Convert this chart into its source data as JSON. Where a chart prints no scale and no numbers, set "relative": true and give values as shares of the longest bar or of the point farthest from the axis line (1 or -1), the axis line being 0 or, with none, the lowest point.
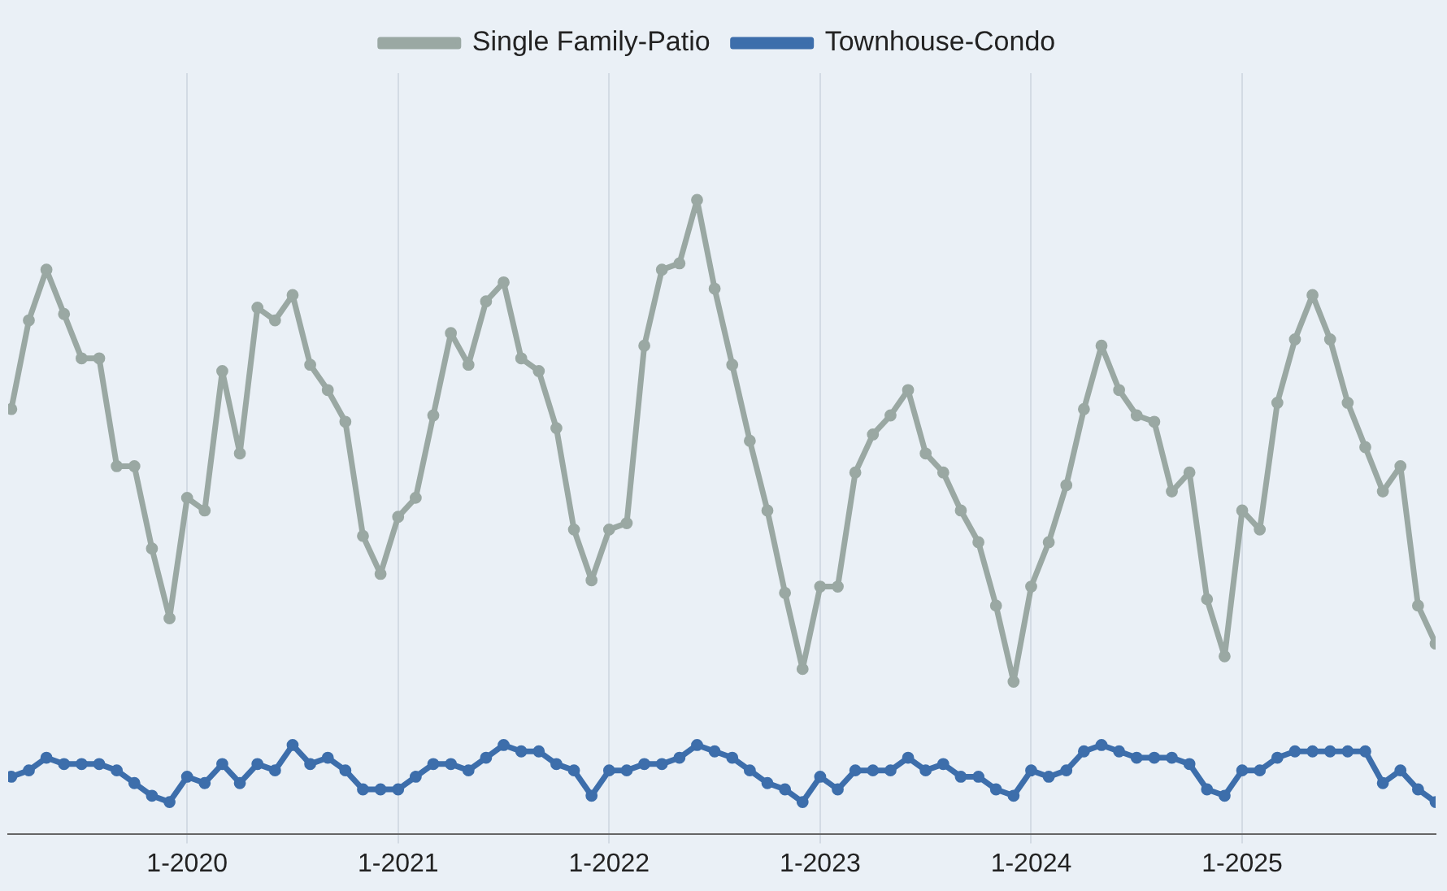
{
  "chart_data": {
    "type": "line",
    "relative": true,
    "legend": "top",
    "grid": "x",
    "marker": "circle",
    "line_style": "solid",
    "x": [
      "2019-03",
      "2019-04",
      "2019-05",
      "2019-06",
      "2019-07",
      "2019-08",
      "2019-09",
      "2019-10",
      "2019-11",
      "2019-12",
      "2020-01",
      "2020-02",
      "2020-03",
      "2020-04",
      "2020-05",
      "2020-06",
      "2020-07",
      "2020-08",
      "2020-09",
      "2020-10",
      "2020-11",
      "2020-12",
      "2021-01",
      "2021-02",
      "2021-03",
      "2021-04",
      "2021-05",
      "2021-06",
      "2021-07",
      "2021-08",
      "2021-09",
      "2021-10",
      "2021-11",
      "2021-12",
      "2022-01",
      "2022-02",
      "2022-03",
      "2022-04",
      "2022-05",
      "2022-06",
      "2022-07",
      "2022-08",
      "2022-09",
      "2022-10",
      "2022-11",
      "2022-12",
      "2023-01",
      "2023-02",
      "2023-03",
      "2023-04",
      "2023-05",
      "2023-06",
      "2023-07",
      "2023-08",
      "2023-09",
      "2023-10",
      "2023-11",
      "2023-12",
      "2024-01",
      "2024-02",
      "2024-03",
      "2024-04",
      "2024-05",
      "2024-06",
      "2024-07",
      "2024-08",
      "2024-09",
      "2024-10",
      "2024-11",
      "2024-12",
      "2025-01",
      "2025-02",
      "2025-03",
      "2025-04",
      "2025-05",
      "2025-06",
      "2025-07",
      "2025-08",
      "2025-09",
      "2025-10",
      "2025-11",
      "2025-12"
    ],
    "xlim": [
      "2019-02-24",
      "2025-12-01"
    ],
    "xticks": [
      {
        "value": "2020-01",
        "label": "1-2020"
      },
      {
        "value": "2021-01",
        "label": "1-2021"
      },
      {
        "value": "2022-01",
        "label": "1-2022"
      },
      {
        "value": "2023-01",
        "label": "1-2023"
      },
      {
        "value": "2024-01",
        "label": "1-2024"
      },
      {
        "value": "2025-01",
        "label": "1-2025"
      }
    ],
    "series": [
      {
        "name": "Single Family-Patio",
        "color": "#9aa8a3",
        "values": [
          0.67,
          0.81,
          0.89,
          0.82,
          0.75,
          0.75,
          0.58,
          0.58,
          0.45,
          0.34,
          0.53,
          0.51,
          0.73,
          0.6,
          0.83,
          0.81,
          0.85,
          0.74,
          0.7,
          0.65,
          0.47,
          0.41,
          0.5,
          0.53,
          0.66,
          0.79,
          0.74,
          0.84,
          0.87,
          0.75,
          0.73,
          0.64,
          0.48,
          0.4,
          0.48,
          0.49,
          0.77,
          0.89,
          0.9,
          1.0,
          0.86,
          0.74,
          0.62,
          0.51,
          0.38,
          0.26,
          0.39,
          0.39,
          0.57,
          0.63,
          0.66,
          0.7,
          0.6,
          0.57,
          0.51,
          0.46,
          0.36,
          0.24,
          0.39,
          0.46,
          0.55,
          0.67,
          0.77,
          0.7,
          0.66,
          0.65,
          0.54,
          0.57,
          0.37,
          0.28,
          0.51,
          0.48,
          0.68,
          0.78,
          0.85,
          0.78,
          0.68,
          0.61,
          0.54,
          0.58,
          0.36,
          0.3
        ]
      },
      {
        "name": "Townhouse-Condo",
        "color": "#3d6eab",
        "values": [
          0.09,
          0.1,
          0.12,
          0.11,
          0.11,
          0.11,
          0.1,
          0.08,
          0.06,
          0.05,
          0.09,
          0.08,
          0.11,
          0.08,
          0.11,
          0.1,
          0.14,
          0.11,
          0.12,
          0.1,
          0.07,
          0.07,
          0.07,
          0.09,
          0.11,
          0.11,
          0.1,
          0.12,
          0.14,
          0.13,
          0.13,
          0.11,
          0.1,
          0.06,
          0.1,
          0.1,
          0.11,
          0.11,
          0.12,
          0.14,
          0.13,
          0.12,
          0.1,
          0.08,
          0.07,
          0.05,
          0.09,
          0.07,
          0.1,
          0.1,
          0.1,
          0.12,
          0.1,
          0.11,
          0.09,
          0.09,
          0.07,
          0.06,
          0.1,
          0.09,
          0.1,
          0.13,
          0.14,
          0.13,
          0.12,
          0.12,
          0.12,
          0.11,
          0.07,
          0.06,
          0.1,
          0.1,
          0.12,
          0.13,
          0.13,
          0.13,
          0.13,
          0.13,
          0.08,
          0.1,
          0.07,
          0.05
        ]
      }
    ]
  }
}
